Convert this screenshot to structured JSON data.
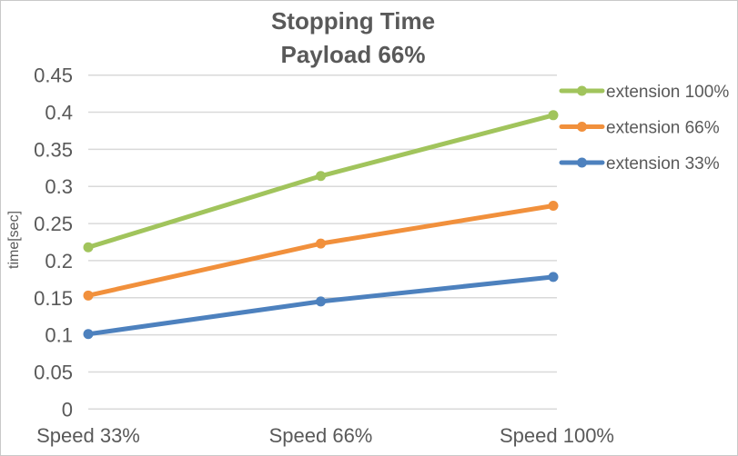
{
  "window": {
    "background": "#FFFFFF",
    "border_color": "#C9C9C9"
  },
  "chart_data": {
    "type": "line",
    "title_line1": "Stopping Time",
    "title_line2": "Payload 66%",
    "ylabel": "time[sec]",
    "xlabel": "",
    "categories": [
      "Speed 33%",
      "Speed 66%",
      "Speed 100%"
    ],
    "series": [
      {
        "name": "extension 100%",
        "color": "#A1C45C",
        "values": [
          0.218,
          0.314,
          0.396
        ]
      },
      {
        "name": "extension 66%",
        "color": "#F1903C",
        "values": [
          0.153,
          0.223,
          0.274
        ]
      },
      {
        "name": "extension 33%",
        "color": "#4D81BE",
        "values": [
          0.101,
          0.145,
          0.178
        ]
      }
    ],
    "ylim": [
      0,
      0.45
    ],
    "ytick_step": 0.05,
    "ytick_labels": [
      "0",
      "0.05",
      "0.1",
      "0.15",
      "0.2",
      "0.25",
      "0.3",
      "0.35",
      "0.4",
      "0.45"
    ],
    "grid": true,
    "legend_position": "right",
    "marker": "circle",
    "text_color": "#595959",
    "grid_color": "#D9D9D9"
  }
}
